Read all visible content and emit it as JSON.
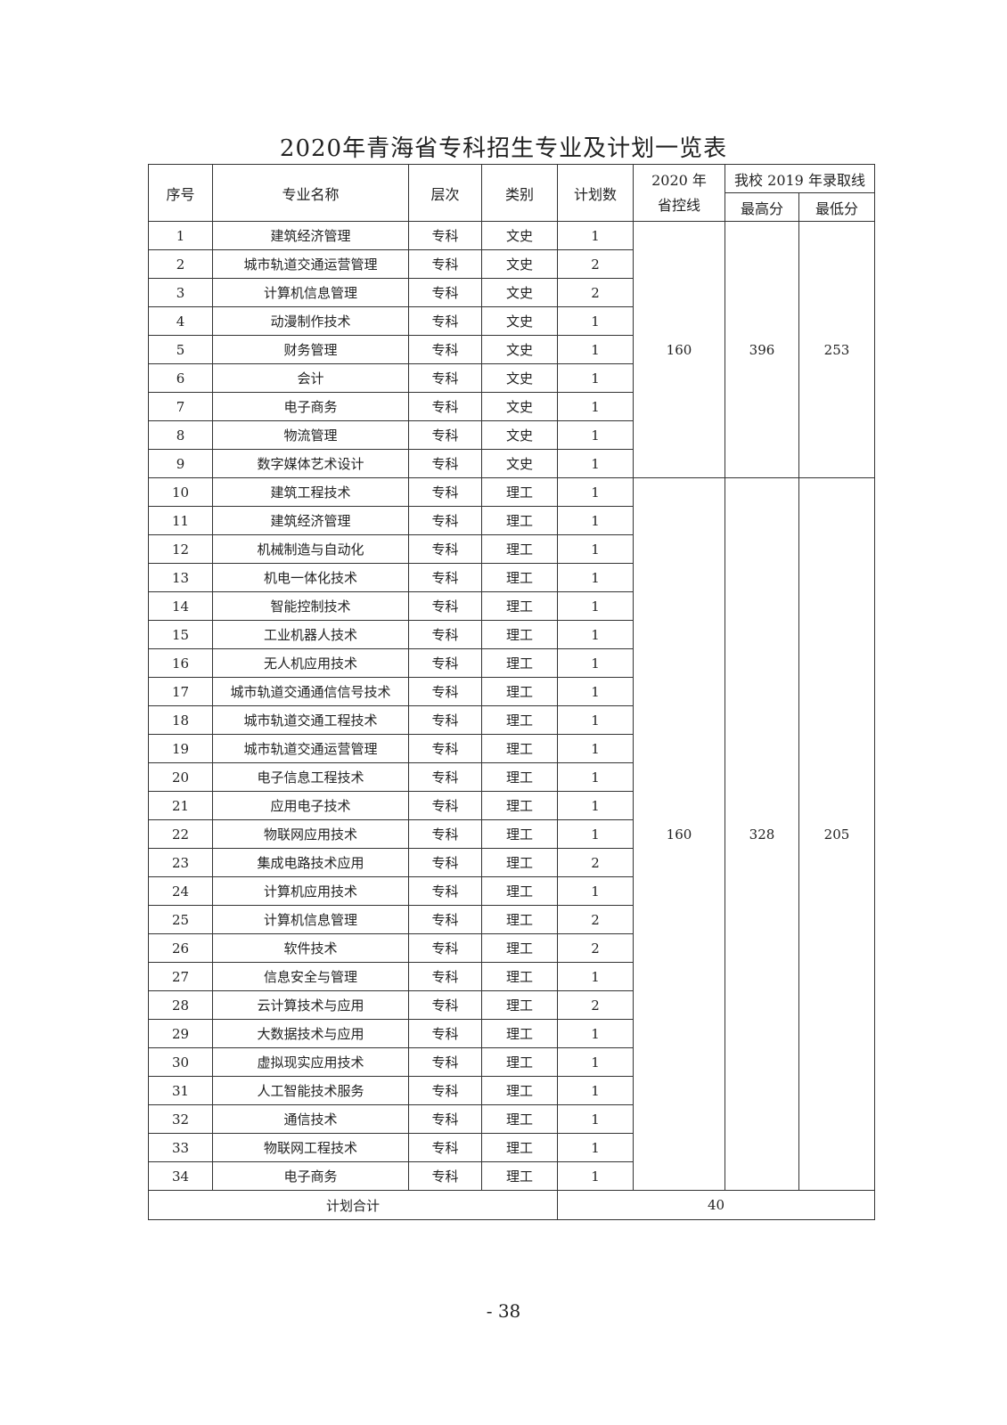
{
  "title": "2020年青海省专科招生专业及计划一览表",
  "headers": {
    "index": "序号",
    "major": "专业名称",
    "level": "层次",
    "category": "类别",
    "plan": "计划数",
    "control_line": "2020 年\n省控线",
    "admission_2019": "我校 2019 年录取线",
    "highest": "最高分",
    "lowest": "最低分"
  },
  "groups": [
    {
      "control_line": "160",
      "highest": "396",
      "lowest": "253",
      "rows": [
        [
          "1",
          "建筑经济管理",
          "专科",
          "文史",
          "1"
        ],
        [
          "2",
          "城市轨道交通运营管理",
          "专科",
          "文史",
          "2"
        ],
        [
          "3",
          "计算机信息管理",
          "专科",
          "文史",
          "2"
        ],
        [
          "4",
          "动漫制作技术",
          "专科",
          "文史",
          "1"
        ],
        [
          "5",
          "财务管理",
          "专科",
          "文史",
          "1"
        ],
        [
          "6",
          "会计",
          "专科",
          "文史",
          "1"
        ],
        [
          "7",
          "电子商务",
          "专科",
          "文史",
          "1"
        ],
        [
          "8",
          "物流管理",
          "专科",
          "文史",
          "1"
        ],
        [
          "9",
          "数字媒体艺术设计",
          "专科",
          "文史",
          "1"
        ]
      ]
    },
    {
      "control_line": "160",
      "highest": "328",
      "lowest": "205",
      "rows": [
        [
          "10",
          "建筑工程技术",
          "专科",
          "理工",
          "1"
        ],
        [
          "11",
          "建筑经济管理",
          "专科",
          "理工",
          "1"
        ],
        [
          "12",
          "机械制造与自动化",
          "专科",
          "理工",
          "1"
        ],
        [
          "13",
          "机电一体化技术",
          "专科",
          "理工",
          "1"
        ],
        [
          "14",
          "智能控制技术",
          "专科",
          "理工",
          "1"
        ],
        [
          "15",
          "工业机器人技术",
          "专科",
          "理工",
          "1"
        ],
        [
          "16",
          "无人机应用技术",
          "专科",
          "理工",
          "1"
        ],
        [
          "17",
          "城市轨道交通通信信号技术",
          "专科",
          "理工",
          "1"
        ],
        [
          "18",
          "城市轨道交通工程技术",
          "专科",
          "理工",
          "1"
        ],
        [
          "19",
          "城市轨道交通运营管理",
          "专科",
          "理工",
          "1"
        ],
        [
          "20",
          "电子信息工程技术",
          "专科",
          "理工",
          "1"
        ],
        [
          "21",
          "应用电子技术",
          "专科",
          "理工",
          "1"
        ],
        [
          "22",
          "物联网应用技术",
          "专科",
          "理工",
          "1"
        ],
        [
          "23",
          "集成电路技术应用",
          "专科",
          "理工",
          "2"
        ],
        [
          "24",
          "计算机应用技术",
          "专科",
          "理工",
          "1"
        ],
        [
          "25",
          "计算机信息管理",
          "专科",
          "理工",
          "2"
        ],
        [
          "26",
          "软件技术",
          "专科",
          "理工",
          "2"
        ],
        [
          "27",
          "信息安全与管理",
          "专科",
          "理工",
          "1"
        ],
        [
          "28",
          "云计算技术与应用",
          "专科",
          "理工",
          "2"
        ],
        [
          "29",
          "大数据技术与应用",
          "专科",
          "理工",
          "1"
        ],
        [
          "30",
          "虚拟现实应用技术",
          "专科",
          "理工",
          "1"
        ],
        [
          "31",
          "人工智能技术服务",
          "专科",
          "理工",
          "1"
        ],
        [
          "32",
          "通信技术",
          "专科",
          "理工",
          "1"
        ],
        [
          "33",
          "物联网工程技术",
          "专科",
          "理工",
          "1"
        ],
        [
          "34",
          "电子商务",
          "专科",
          "理工",
          "1"
        ]
      ]
    }
  ],
  "total": {
    "label": "计划合计",
    "value": "40"
  },
  "page_number": "- 38"
}
